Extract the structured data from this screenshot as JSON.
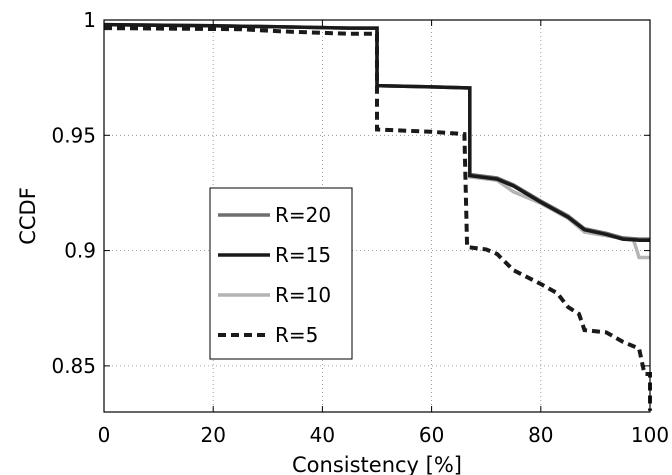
{
  "chart_data": {
    "type": "line",
    "title": "",
    "xlabel": "Consistency [%]",
    "ylabel": "CCDF",
    "xlim": [
      0,
      100
    ],
    "ylim": [
      0.83,
      1.0
    ],
    "xticks": [
      0,
      20,
      40,
      60,
      80,
      100
    ],
    "xtick_labels": [
      "0",
      "20",
      "40",
      "60",
      "80",
      "100"
    ],
    "yticks": [
      0.85,
      0.9,
      0.95,
      1.0
    ],
    "ytick_labels": [
      "0.85",
      "0.9",
      "0.95",
      "1"
    ],
    "grid": true,
    "legend_position": "center-left",
    "series": [
      {
        "name": "R=20",
        "color": "#6e6e6e",
        "style": "solid",
        "points": [
          [
            0,
            0.998
          ],
          [
            20,
            0.9975
          ],
          [
            33,
            0.997
          ],
          [
            45,
            0.9965
          ],
          [
            50,
            0.9965
          ],
          [
            50,
            0.9715
          ],
          [
            60,
            0.971
          ],
          [
            67,
            0.9705
          ],
          [
            67,
            0.933
          ],
          [
            72,
            0.9315
          ],
          [
            75,
            0.9285
          ],
          [
            80,
            0.9215
          ],
          [
            85,
            0.915
          ],
          [
            88,
            0.9095
          ],
          [
            92,
            0.9075
          ],
          [
            95,
            0.9055
          ],
          [
            98,
            0.905
          ],
          [
            100,
            0.905
          ]
        ]
      },
      {
        "name": "R=15",
        "color": "#1a1a1a",
        "style": "solid",
        "points": [
          [
            0,
            0.998
          ],
          [
            20,
            0.9975
          ],
          [
            33,
            0.997
          ],
          [
            45,
            0.9965
          ],
          [
            50,
            0.9965
          ],
          [
            50,
            0.9715
          ],
          [
            60,
            0.971
          ],
          [
            67,
            0.9705
          ],
          [
            67,
            0.9325
          ],
          [
            72,
            0.931
          ],
          [
            75,
            0.928
          ],
          [
            80,
            0.921
          ],
          [
            85,
            0.9145
          ],
          [
            88,
            0.909
          ],
          [
            92,
            0.907
          ],
          [
            95,
            0.905
          ],
          [
            98,
            0.9045
          ],
          [
            100,
            0.9045
          ]
        ]
      },
      {
        "name": "R=10",
        "color": "#b4b4b4",
        "style": "solid",
        "points": [
          [
            0,
            0.998
          ],
          [
            20,
            0.9975
          ],
          [
            33,
            0.997
          ],
          [
            45,
            0.9965
          ],
          [
            50,
            0.9965
          ],
          [
            50,
            0.9715
          ],
          [
            60,
            0.971
          ],
          [
            67,
            0.9705
          ],
          [
            67,
            0.932
          ],
          [
            72,
            0.9305
          ],
          [
            75,
            0.9255
          ],
          [
            80,
            0.9205
          ],
          [
            85,
            0.914
          ],
          [
            88,
            0.908
          ],
          [
            92,
            0.9065
          ],
          [
            97,
            0.9045
          ],
          [
            98,
            0.897
          ],
          [
            100,
            0.897
          ]
        ]
      },
      {
        "name": "R=5",
        "color": "#1a1a1a",
        "style": "dashed",
        "points": [
          [
            0,
            0.9965
          ],
          [
            25,
            0.996
          ],
          [
            33,
            0.995
          ],
          [
            45,
            0.994
          ],
          [
            50,
            0.994
          ],
          [
            50,
            0.9525
          ],
          [
            60,
            0.9515
          ],
          [
            66,
            0.9505
          ],
          [
            66.5,
            0.9015
          ],
          [
            70,
            0.9005
          ],
          [
            72,
            0.8985
          ],
          [
            75,
            0.8915
          ],
          [
            80,
            0.8855
          ],
          [
            83,
            0.8815
          ],
          [
            85,
            0.8755
          ],
          [
            87,
            0.8725
          ],
          [
            88,
            0.8655
          ],
          [
            92,
            0.8645
          ],
          [
            95,
            0.8605
          ],
          [
            98,
            0.8575
          ],
          [
            99,
            0.8465
          ],
          [
            100,
            0.8465
          ],
          [
            100,
            0.8305
          ]
        ]
      }
    ]
  }
}
